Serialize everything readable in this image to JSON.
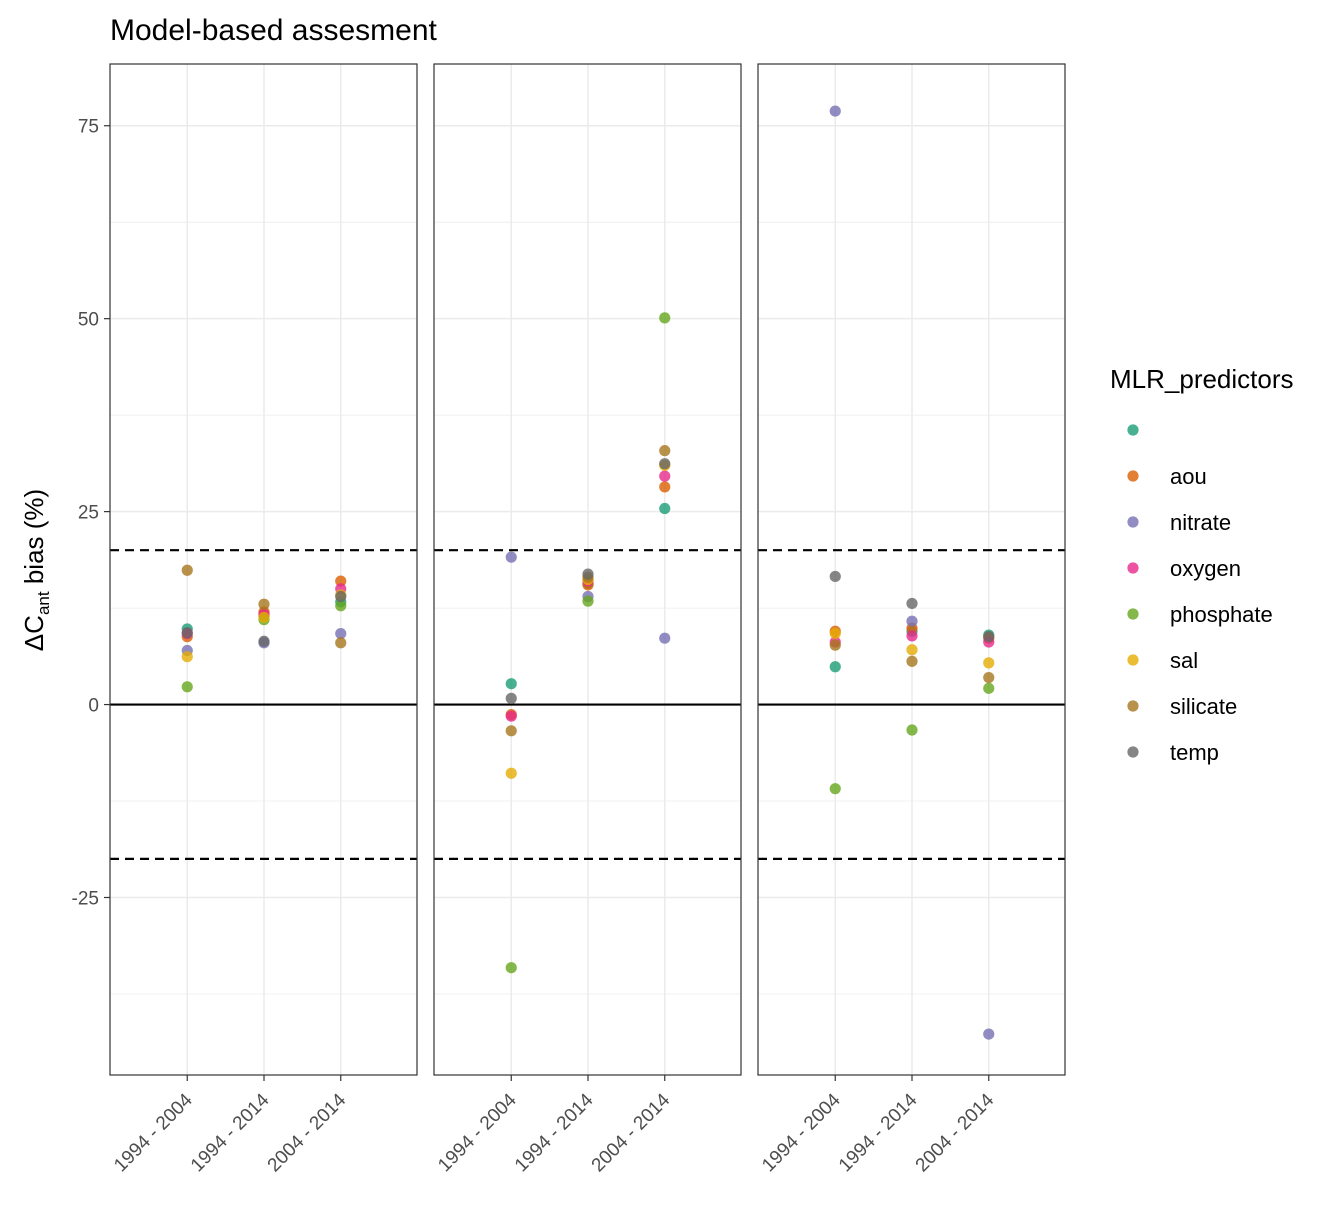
{
  "chart_data": {
    "type": "scatter",
    "title": "Model-based assesment",
    "ylabel": {
      "prefix": "ΔC",
      "subscript": "ant",
      "suffix": " bias (%)"
    },
    "xlabel": "",
    "categories": [
      "1994 - 2004",
      "1994 - 2014",
      "2004 - 2014"
    ],
    "yticks": [
      -25,
      0,
      25,
      50,
      75
    ],
    "ylim": [
      -48,
      83
    ],
    "reference_lines": {
      "solid": [
        0
      ],
      "dashed": [
        20,
        -20
      ]
    },
    "grid": true,
    "legend": {
      "title": "MLR_predictors",
      "placement": "right"
    },
    "series": [
      {
        "key": "blank",
        "name": "",
        "color": "#1B9E77"
      },
      {
        "key": "aou",
        "name": "aou",
        "color": "#D95F02"
      },
      {
        "key": "nitrate",
        "name": "nitrate",
        "color": "#7570B3"
      },
      {
        "key": "oxygen",
        "name": "oxygen",
        "color": "#E7298A"
      },
      {
        "key": "phosphate",
        "name": "phosphate",
        "color": "#66A61E"
      },
      {
        "key": "sal",
        "name": "sal",
        "color": "#E6AB02"
      },
      {
        "key": "silicate",
        "name": "silicate",
        "color": "#A6761D"
      },
      {
        "key": "temp",
        "name": "temp",
        "color": "#666666"
      }
    ],
    "panels": [
      {
        "points": [
          {
            "x": "1994 - 2004",
            "series": "blank",
            "y": 9.8
          },
          {
            "x": "1994 - 2004",
            "series": "aou",
            "y": 8.8
          },
          {
            "x": "1994 - 2004",
            "series": "nitrate",
            "y": 7.0
          },
          {
            "x": "1994 - 2004",
            "series": "oxygen",
            "y": 9.2
          },
          {
            "x": "1994 - 2004",
            "series": "phosphate",
            "y": 2.3
          },
          {
            "x": "1994 - 2004",
            "series": "sal",
            "y": 6.2
          },
          {
            "x": "1994 - 2004",
            "series": "silicate",
            "y": 17.4
          },
          {
            "x": "1994 - 2004",
            "series": "temp",
            "y": 9.3
          },
          {
            "x": "1994 - 2014",
            "series": "blank",
            "y": 11.5
          },
          {
            "x": "1994 - 2014",
            "series": "aou",
            "y": 12.0
          },
          {
            "x": "1994 - 2014",
            "series": "nitrate",
            "y": 8.0
          },
          {
            "x": "1994 - 2014",
            "series": "oxygen",
            "y": 11.7
          },
          {
            "x": "1994 - 2014",
            "series": "phosphate",
            "y": 11.0
          },
          {
            "x": "1994 - 2014",
            "series": "sal",
            "y": 11.3
          },
          {
            "x": "1994 - 2014",
            "series": "silicate",
            "y": 13.0
          },
          {
            "x": "1994 - 2014",
            "series": "temp",
            "y": 8.2
          },
          {
            "x": "2004 - 2014",
            "series": "blank",
            "y": 13.3
          },
          {
            "x": "2004 - 2014",
            "series": "aou",
            "y": 16.0
          },
          {
            "x": "2004 - 2014",
            "series": "nitrate",
            "y": 9.2
          },
          {
            "x": "2004 - 2014",
            "series": "oxygen",
            "y": 15.0
          },
          {
            "x": "2004 - 2014",
            "series": "phosphate",
            "y": 12.8
          },
          {
            "x": "2004 - 2014",
            "series": "sal",
            "y": 14.2
          },
          {
            "x": "2004 - 2014",
            "series": "silicate",
            "y": 8.0
          },
          {
            "x": "2004 - 2014",
            "series": "temp",
            "y": 14.0
          }
        ]
      },
      {
        "points": [
          {
            "x": "1994 - 2004",
            "series": "blank",
            "y": 2.7
          },
          {
            "x": "1994 - 2004",
            "series": "aou",
            "y": -1.3
          },
          {
            "x": "1994 - 2004",
            "series": "nitrate",
            "y": 19.1
          },
          {
            "x": "1994 - 2004",
            "series": "oxygen",
            "y": -1.5
          },
          {
            "x": "1994 - 2004",
            "series": "phosphate",
            "y": -34.1
          },
          {
            "x": "1994 - 2004",
            "series": "sal",
            "y": -8.9
          },
          {
            "x": "1994 - 2004",
            "series": "silicate",
            "y": -3.4
          },
          {
            "x": "1994 - 2004",
            "series": "temp",
            "y": 0.8
          },
          {
            "x": "1994 - 2014",
            "series": "blank",
            "y": 15.7
          },
          {
            "x": "1994 - 2014",
            "series": "aou",
            "y": 15.5
          },
          {
            "x": "1994 - 2014",
            "series": "nitrate",
            "y": 14.0
          },
          {
            "x": "1994 - 2014",
            "series": "oxygen",
            "y": 16.0
          },
          {
            "x": "1994 - 2014",
            "series": "phosphate",
            "y": 13.4
          },
          {
            "x": "1994 - 2014",
            "series": "sal",
            "y": 16.2
          },
          {
            "x": "1994 - 2014",
            "series": "silicate",
            "y": 16.5
          },
          {
            "x": "1994 - 2014",
            "series": "temp",
            "y": 16.9
          },
          {
            "x": "2004 - 2014",
            "series": "blank",
            "y": 25.4
          },
          {
            "x": "2004 - 2014",
            "series": "aou",
            "y": 28.2
          },
          {
            "x": "2004 - 2014",
            "series": "nitrate",
            "y": 8.6
          },
          {
            "x": "2004 - 2014",
            "series": "oxygen",
            "y": 29.6
          },
          {
            "x": "2004 - 2014",
            "series": "phosphate",
            "y": 50.1
          },
          {
            "x": "2004 - 2014",
            "series": "sal",
            "y": 31.0
          },
          {
            "x": "2004 - 2014",
            "series": "silicate",
            "y": 32.9
          },
          {
            "x": "2004 - 2014",
            "series": "temp",
            "y": 31.2
          }
        ]
      },
      {
        "points": [
          {
            "x": "1994 - 2004",
            "series": "blank",
            "y": 4.9
          },
          {
            "x": "1994 - 2004",
            "series": "aou",
            "y": 9.5
          },
          {
            "x": "1994 - 2004",
            "series": "nitrate",
            "y": 76.9
          },
          {
            "x": "1994 - 2004",
            "series": "oxygen",
            "y": 8.1
          },
          {
            "x": "1994 - 2004",
            "series": "phosphate",
            "y": -10.9
          },
          {
            "x": "1994 - 2004",
            "series": "sal",
            "y": 9.2
          },
          {
            "x": "1994 - 2004",
            "series": "silicate",
            "y": 7.7
          },
          {
            "x": "1994 - 2004",
            "series": "temp",
            "y": 16.6
          },
          {
            "x": "1994 - 2014",
            "series": "blank",
            "y": 9.5
          },
          {
            "x": "1994 - 2014",
            "series": "aou",
            "y": 9.9
          },
          {
            "x": "1994 - 2014",
            "series": "nitrate",
            "y": 10.8
          },
          {
            "x": "1994 - 2014",
            "series": "oxygen",
            "y": 8.9
          },
          {
            "x": "1994 - 2014",
            "series": "phosphate",
            "y": -3.3
          },
          {
            "x": "1994 - 2014",
            "series": "sal",
            "y": 7.1
          },
          {
            "x": "1994 - 2014",
            "series": "silicate",
            "y": 5.6
          },
          {
            "x": "1994 - 2014",
            "series": "temp",
            "y": 13.1
          },
          {
            "x": "2004 - 2014",
            "series": "blank",
            "y": 9.0
          },
          {
            "x": "2004 - 2014",
            "series": "aou",
            "y": 8.6
          },
          {
            "x": "2004 - 2014",
            "series": "nitrate",
            "y": -42.7
          },
          {
            "x": "2004 - 2014",
            "series": "oxygen",
            "y": 8.1
          },
          {
            "x": "2004 - 2014",
            "series": "phosphate",
            "y": 2.1
          },
          {
            "x": "2004 - 2014",
            "series": "sal",
            "y": 5.4
          },
          {
            "x": "2004 - 2014",
            "series": "silicate",
            "y": 3.5
          },
          {
            "x": "2004 - 2014",
            "series": "temp",
            "y": 8.8
          }
        ]
      }
    ]
  }
}
